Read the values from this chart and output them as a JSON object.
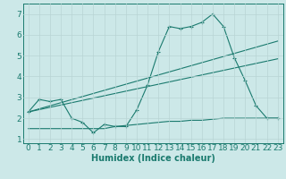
{
  "x_labels": [
    0,
    1,
    2,
    3,
    4,
    5,
    6,
    7,
    8,
    9,
    10,
    11,
    12,
    13,
    14,
    15,
    16,
    17,
    18,
    19,
    20,
    21,
    22,
    23
  ],
  "line1_x": [
    0,
    1,
    2,
    3,
    4,
    5,
    6,
    7,
    8,
    9,
    10,
    11,
    12,
    13,
    14,
    15,
    16,
    17,
    18,
    19,
    20,
    21,
    22,
    23
  ],
  "line1_y": [
    2.3,
    2.9,
    2.8,
    2.9,
    2.0,
    1.8,
    1.3,
    1.7,
    1.6,
    1.6,
    2.4,
    3.6,
    5.2,
    6.4,
    6.3,
    6.4,
    6.6,
    7.0,
    6.4,
    4.9,
    3.8,
    2.6,
    2.0,
    2.0
  ],
  "line2_x": [
    0,
    23
  ],
  "line2_y": [
    2.3,
    5.7
  ],
  "line3_x": [
    0,
    23
  ],
  "line3_y": [
    2.3,
    4.85
  ],
  "line4_x": [
    0,
    1,
    2,
    3,
    4,
    5,
    6,
    7,
    8,
    9,
    10,
    11,
    12,
    13,
    14,
    15,
    16,
    17,
    18,
    19,
    20,
    21,
    22,
    23
  ],
  "line4_y": [
    1.5,
    1.5,
    1.5,
    1.5,
    1.5,
    1.5,
    1.5,
    1.5,
    1.6,
    1.65,
    1.7,
    1.75,
    1.8,
    1.85,
    1.85,
    1.9,
    1.9,
    1.95,
    2.0,
    2.0,
    2.0,
    2.0,
    2.0,
    2.0
  ],
  "line_color": "#1a7a6e",
  "bg_color": "#cce8e8",
  "grid_color": "#b8d4d4",
  "ylim": [
    0.8,
    7.5
  ],
  "xlim": [
    -0.5,
    23.5
  ],
  "yticks": [
    1,
    2,
    3,
    4,
    5,
    6,
    7
  ],
  "xlabel": "Humidex (Indice chaleur)",
  "xlabel_fontsize": 7,
  "tick_fontsize": 6.5
}
